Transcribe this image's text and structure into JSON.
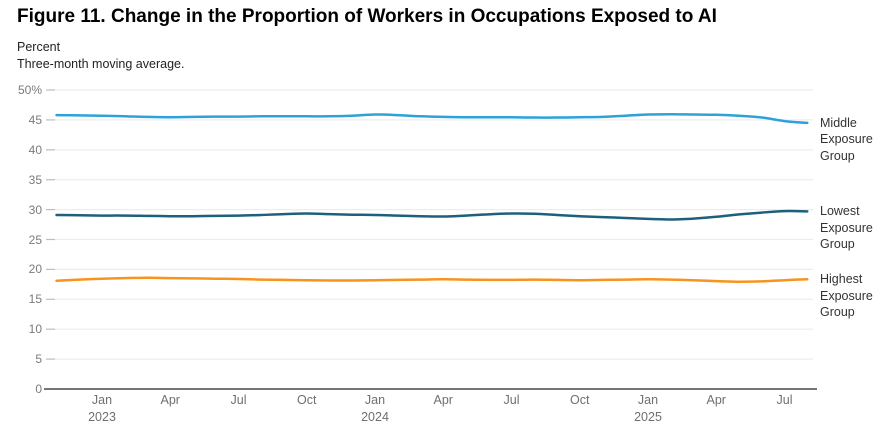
{
  "chart_data": {
    "type": "line",
    "title": "Figure 11. Change in the Proportion of Workers in Occupations Exposed to AI",
    "ylabel": "Percent",
    "subtitle_note": "Three-month moving average.",
    "ylim": [
      0,
      50
    ],
    "grid": true,
    "legend_position": "right-of-line-end",
    "y_ticks": [
      {
        "value": 0,
        "label": "0"
      },
      {
        "value": 5,
        "label": "5"
      },
      {
        "value": 10,
        "label": "10"
      },
      {
        "value": 15,
        "label": "15"
      },
      {
        "value": 20,
        "label": "20"
      },
      {
        "value": 25,
        "label": "25"
      },
      {
        "value": 30,
        "label": "30"
      },
      {
        "value": 35,
        "label": "35"
      },
      {
        "value": 40,
        "label": "40"
      },
      {
        "value": 45,
        "label": "45"
      },
      {
        "value": 50,
        "label": "50%"
      }
    ],
    "x": [
      "Nov 2022",
      "Dec 2022",
      "Jan 2023",
      "Feb 2023",
      "Mar 2023",
      "Apr 2023",
      "May 2023",
      "Jun 2023",
      "Jul 2023",
      "Aug 2023",
      "Sep 2023",
      "Oct 2023",
      "Nov 2023",
      "Dec 2023",
      "Jan 2024",
      "Feb 2024",
      "Mar 2024",
      "Apr 2024",
      "May 2024",
      "Jun 2024",
      "Jul 2024",
      "Aug 2024",
      "Sep 2024",
      "Oct 2024",
      "Nov 2024",
      "Dec 2024",
      "Jan 2025",
      "Feb 2025",
      "Mar 2025",
      "Apr 2025",
      "May 2025",
      "Jun 2025",
      "Jul 2025",
      "Aug 2025"
    ],
    "x_ticks": [
      {
        "month": "Jan 2023",
        "line1": "Jan",
        "line2": "2023"
      },
      {
        "month": "Apr 2023",
        "line1": "Apr",
        "line2": ""
      },
      {
        "month": "Jul 2023",
        "line1": "Jul",
        "line2": ""
      },
      {
        "month": "Oct 2023",
        "line1": "Oct",
        "line2": ""
      },
      {
        "month": "Jan 2024",
        "line1": "Jan",
        "line2": "2024"
      },
      {
        "month": "Apr 2024",
        "line1": "Apr",
        "line2": ""
      },
      {
        "month": "Jul 2024",
        "line1": "Jul",
        "line2": ""
      },
      {
        "month": "Oct 2024",
        "line1": "Oct",
        "line2": ""
      },
      {
        "month": "Jan 2025",
        "line1": "Jan",
        "line2": "2025"
      },
      {
        "month": "Apr 2025",
        "line1": "Apr",
        "line2": ""
      },
      {
        "month": "Jul 2025",
        "line1": "Jul",
        "line2": ""
      }
    ],
    "series": [
      {
        "name": "Middle Exposure Group",
        "color": "#2CA2D8",
        "values": [
          45.8,
          45.75,
          45.7,
          45.6,
          45.5,
          45.45,
          45.5,
          45.55,
          45.55,
          45.6,
          45.6,
          45.6,
          45.6,
          45.7,
          45.9,
          45.8,
          45.6,
          45.5,
          45.45,
          45.45,
          45.45,
          45.4,
          45.4,
          45.45,
          45.5,
          45.7,
          45.9,
          45.95,
          45.9,
          45.85,
          45.7,
          45.4,
          44.8,
          44.5
        ]
      },
      {
        "name": "Lowest Exposure Group",
        "color": "#1D607B",
        "values": [
          29.1,
          29.05,
          29.0,
          29.0,
          28.95,
          28.9,
          28.9,
          28.95,
          29.0,
          29.1,
          29.25,
          29.35,
          29.25,
          29.15,
          29.1,
          29.0,
          28.9,
          28.85,
          29.0,
          29.2,
          29.35,
          29.3,
          29.1,
          28.9,
          28.75,
          28.6,
          28.45,
          28.35,
          28.5,
          28.8,
          29.2,
          29.5,
          29.75,
          29.7
        ]
      },
      {
        "name": "Highest Exposure Group",
        "color": "#F7941E",
        "values": [
          18.1,
          18.3,
          18.45,
          18.55,
          18.6,
          18.55,
          18.5,
          18.45,
          18.4,
          18.3,
          18.25,
          18.2,
          18.15,
          18.15,
          18.2,
          18.25,
          18.3,
          18.35,
          18.3,
          18.25,
          18.25,
          18.3,
          18.25,
          18.2,
          18.25,
          18.3,
          18.35,
          18.3,
          18.2,
          18.05,
          17.95,
          18.0,
          18.2,
          18.35
        ]
      }
    ],
    "axis_colors": {
      "gridline": "#ededed",
      "tick_stub": "#bdbdbd",
      "zero_axis": "#757575",
      "tick_label": "#7b7b7b"
    }
  }
}
